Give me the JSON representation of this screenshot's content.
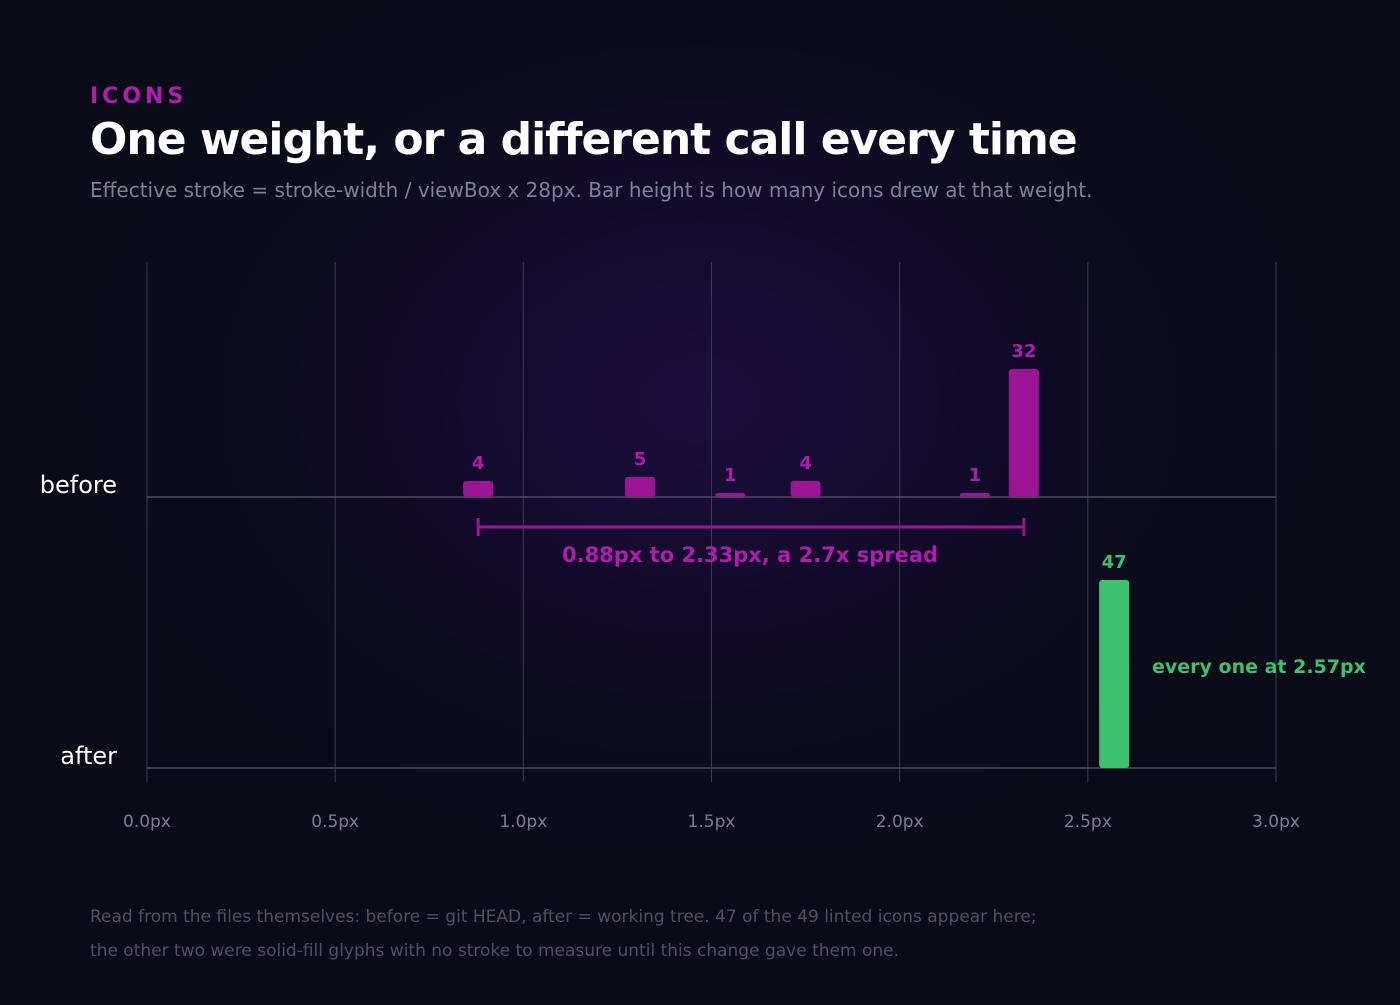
{
  "header": {
    "kicker": "ICONS",
    "title": "One weight, or a different call every time",
    "subtitle": "Effective stroke = stroke-width / viewBox x 28px. Bar height is how many icons drew at that weight."
  },
  "footnote": {
    "line1": "Read from the files themselves: before = git HEAD, after = working tree. 47 of the 49 linted icons appear here;",
    "line2": "the other two were solid-fill glyphs with no stroke to measure until this change gave them one."
  },
  "colors": {
    "before": "#9b1596",
    "before_label": "#b01cb0",
    "after": "#3cc26f",
    "grid": "#3a3c50",
    "axis": "#4a4c60",
    "tick_text": "#7c7e90"
  },
  "chart_data": {
    "type": "bar",
    "x_ticks": [
      "0.0px",
      "0.5px",
      "1.0px",
      "1.5px",
      "2.0px",
      "2.5px",
      "3.0px"
    ],
    "xlim": [
      0,
      3
    ],
    "rows": [
      "before",
      "after"
    ],
    "series": [
      {
        "name": "before",
        "points": [
          {
            "x": 0.88,
            "count": 4,
            "label": "4"
          },
          {
            "x": 1.31,
            "count": 5,
            "label": "5"
          },
          {
            "x": 1.55,
            "count": 1,
            "label": "1"
          },
          {
            "x": 1.75,
            "count": 4,
            "label": "4"
          },
          {
            "x": 2.2,
            "count": 1,
            "label": "1"
          },
          {
            "x": 2.33,
            "count": 32,
            "label": "32"
          }
        ]
      },
      {
        "name": "after",
        "points": [
          {
            "x": 2.57,
            "count": 47,
            "label": "47"
          }
        ]
      }
    ],
    "annotations": {
      "spread_label": "0.88px to 2.33px, a 2.7x spread",
      "spread_range": [
        0.88,
        2.33
      ],
      "after_label": "every one at 2.57px"
    }
  }
}
